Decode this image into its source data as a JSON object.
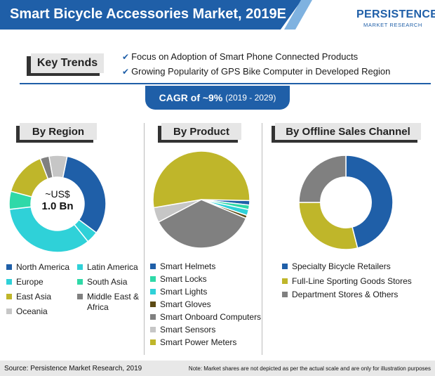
{
  "title": "Smart Bicycle Accessories Market, 2019E",
  "logo": {
    "main": "PERSISTENCE",
    "sub": "MARKET RESEARCH"
  },
  "key_trends": {
    "label": "Key Trends",
    "items": [
      "Focus on Adoption of Smart Phone Connected Products",
      "Growing Popularity of GPS Bike Computer in Developed Region"
    ]
  },
  "cagr": {
    "main": "CAGR of ~9%",
    "period": "(2019 - 2029)"
  },
  "center": {
    "line1": "~US$",
    "line2": "1.0 Bn"
  },
  "colors": {
    "blue": "#1f5fa8",
    "cyan": "#2fd1d8",
    "teal": "#2fd9a8",
    "olive": "#bfb62a",
    "gray": "#808080",
    "lightgray": "#c6c6c6",
    "darkolive": "#5c4a14"
  },
  "footer": {
    "source": "Source: Persistence Market Research, 2019",
    "note": "Note: Market shares are not depicted as per the actual scale and are only for illustration purposes"
  },
  "chart_data": [
    {
      "type": "pie",
      "title": "By Region",
      "categories": [
        "North America",
        "Latin America",
        "Europe",
        "South Asia",
        "East Asia",
        "Middle East & Africa",
        "Oceania"
      ],
      "values": [
        32,
        4,
        34,
        6,
        15,
        3,
        6
      ],
      "colors": [
        "#1f5fa8",
        "#2fd1d8",
        "#2fd1d8",
        "#2fd9a8",
        "#bfb62a",
        "#808080",
        "#c6c6c6"
      ],
      "donut": true
    },
    {
      "type": "pie",
      "title": "By Product",
      "categories": [
        "Smart Helmets",
        "Smart Locks",
        "Smart Lights",
        "Smart Gloves",
        "Smart Onboard Computers",
        "Smart Sensors",
        "Smart Power Meters"
      ],
      "values": [
        1.5,
        1.5,
        2,
        1,
        36,
        5,
        53
      ],
      "colors": [
        "#1f5fa8",
        "#2fd9a8",
        "#2fd1d8",
        "#5c4a14",
        "#808080",
        "#c6c6c6",
        "#bfb62a"
      ],
      "donut": false
    },
    {
      "type": "pie",
      "title": "By Offline Sales Channel",
      "categories": [
        "Specialty Bicycle Retailers",
        "Full-Line Sporting Goods Stores",
        "Department Stores & Others"
      ],
      "values": [
        46,
        29,
        25
      ],
      "colors": [
        "#1f5fa8",
        "#bfb62a",
        "#808080"
      ],
      "donut": true
    }
  ]
}
